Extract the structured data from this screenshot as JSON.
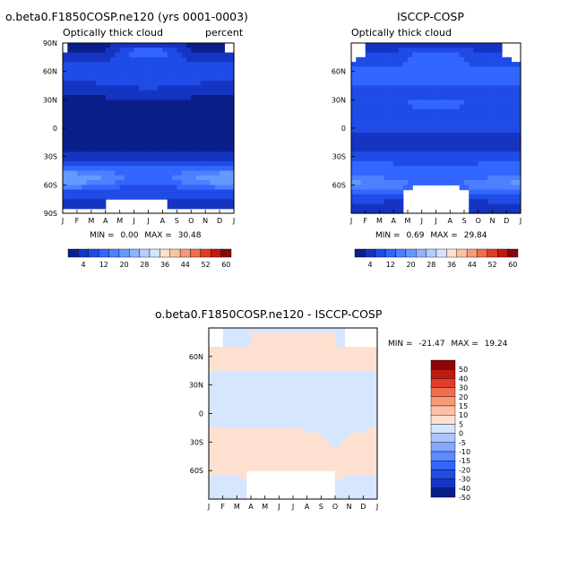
{
  "colors": {
    "seq": [
      "#0a1f8a",
      "#1634c2",
      "#1f4be6",
      "#3366ff",
      "#4d80ff",
      "#6699ff",
      "#8fb3ff",
      "#b3cdff",
      "#d6e4ff",
      "#fde0d0",
      "#fcc1a4",
      "#f79a76",
      "#f06e4e",
      "#e03c28",
      "#c01a10",
      "#8b0505"
    ],
    "diff": [
      "#0a1f8a",
      "#1634c2",
      "#1f4be6",
      "#3366ff",
      "#5c8aff",
      "#85a8ff",
      "#adc6ff",
      "#d6e6ff",
      "#fde0d0",
      "#fcc1a4",
      "#f79a76",
      "#f06e4e",
      "#e03c28",
      "#c01a10",
      "#8b0505"
    ]
  },
  "chart_data": [
    {
      "type": "heatmap",
      "title": "o.beta0.F1850COSP.ne120 (yrs 0001-0003)",
      "subtitle_left": "Optically thick cloud",
      "subtitle_right": "percent",
      "xlabels": [
        "J",
        "F",
        "M",
        "A",
        "M",
        "J",
        "J",
        "A",
        "S",
        "O",
        "N",
        "D",
        "J"
      ],
      "ylabels": [
        "90N",
        "60N",
        "30N",
        "0",
        "30S",
        "60S",
        "90S"
      ],
      "min_label": "MIN =",
      "min_value": "0.00",
      "max_label": "MAX =",
      "max_value": "30.48",
      "zlim": [
        0,
        64
      ],
      "colorbar_ticks": [
        "4",
        "12",
        "20",
        "28",
        "36",
        "44",
        "52",
        "60"
      ]
    },
    {
      "type": "heatmap",
      "title": "ISCCP-COSP",
      "subtitle_left": "Optically thick cloud",
      "xlabels": [
        "J",
        "F",
        "M",
        "A",
        "M",
        "J",
        "J",
        "A",
        "S",
        "O",
        "N",
        "D",
        "J"
      ],
      "ylabels": [
        "60N",
        "30N",
        "0",
        "30S",
        "60S"
      ],
      "min_label": "MIN =",
      "min_value": "0.69",
      "max_label": "MAX =",
      "max_value": "29.84",
      "zlim": [
        0,
        64
      ],
      "colorbar_ticks": [
        "4",
        "12",
        "20",
        "28",
        "36",
        "44",
        "52",
        "60"
      ]
    },
    {
      "type": "heatmap",
      "title": "o.beta0.F1850COSP.ne120 - ISCCP-COSP",
      "xlabels": [
        "J",
        "F",
        "M",
        "A",
        "M",
        "J",
        "J",
        "A",
        "S",
        "O",
        "N",
        "D",
        "J"
      ],
      "ylabels": [
        "60N",
        "30N",
        "0",
        "30S",
        "60S"
      ],
      "min_label": "MIN =",
      "min_value": "-21.47",
      "max_label": "MAX =",
      "max_value": "19.24",
      "levels": [
        "50",
        "40",
        "30",
        "20",
        "15",
        "10",
        "5",
        "0",
        "-5",
        "-10",
        "-15",
        "-20",
        "-30",
        "-40",
        "-50"
      ]
    }
  ]
}
